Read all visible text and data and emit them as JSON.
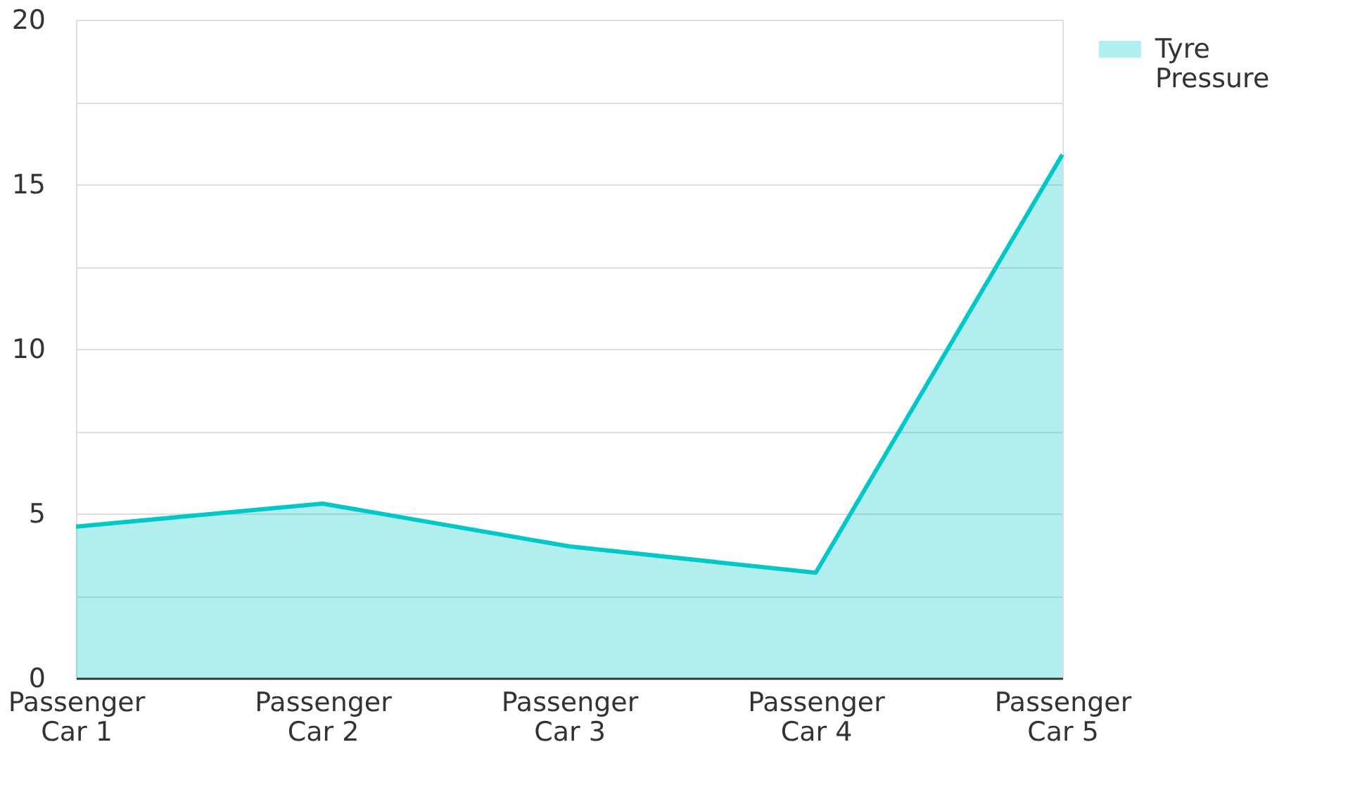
{
  "chart_data": {
    "type": "area",
    "categories": [
      "Passenger Car 1",
      "Passenger Car 2",
      "Passenger Car 3",
      "Passenger Car 4",
      "Passenger Car 5"
    ],
    "series": [
      {
        "name": "Tyre Pressure",
        "color": "#00c8c8",
        "values": [
          4.6,
          5.3,
          4.0,
          3.2,
          15.9
        ]
      }
    ],
    "ylim": [
      0,
      20
    ],
    "yticks": [
      0,
      {
        "value": 2.5,
        "label": null
      },
      5,
      {
        "value": 7.5,
        "label": null
      },
      10,
      {
        "value": 12.5,
        "label": null
      },
      15,
      {
        "value": 17.5,
        "label": null
      },
      20
    ],
    "grid": "y",
    "legend": "top right"
  }
}
